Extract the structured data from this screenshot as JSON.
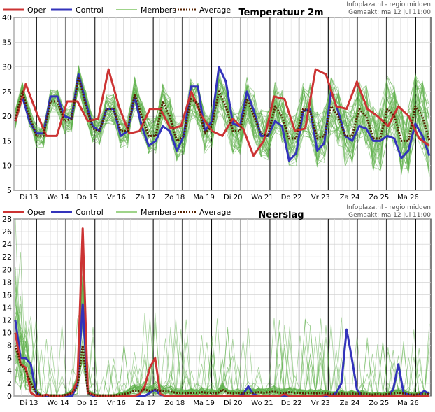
{
  "chart_data": [
    {
      "type": "line",
      "title": "Temperatuur 2m",
      "source": "Infoplaza.nl - regio midden",
      "made": "Gemaakt: ma 12 jul 11:00",
      "ylim": [
        5,
        40
      ],
      "yticks": [
        5,
        10,
        15,
        20,
        25,
        30,
        35,
        40
      ],
      "day_labels": [
        "Di 13",
        "Wo 14",
        "Do 15",
        "Vr 16",
        "Za 17",
        "Zo 18",
        "Ma 19",
        "Di 20",
        "Wo 21",
        "Do 22",
        "Vr 23",
        "Za 24",
        "Zo 25",
        "Ma 26"
      ],
      "legend": [
        {
          "key": "oper",
          "label": "Oper",
          "color": "#cc3333",
          "style": "solid"
        },
        {
          "key": "control",
          "label": "Control",
          "color": "#3333bb",
          "style": "solid"
        },
        {
          "key": "members",
          "label": "Members",
          "color": "#66bb44",
          "style": "thin"
        },
        {
          "key": "average",
          "label": "Average",
          "color": "#552200",
          "style": "dotted"
        }
      ],
      "series": [
        {
          "name": "Oper",
          "values": [
            19,
            26.5,
            21,
            16,
            16,
            23,
            23,
            19,
            19.5,
            29.5,
            22,
            16.5,
            17,
            21.5,
            21.5,
            17.5,
            18,
            25,
            20,
            17,
            16,
            19.5,
            17.5,
            12,
            15,
            24,
            23.5,
            17,
            17.5,
            29.5,
            28.5,
            22,
            21.5,
            27,
            21.5,
            20,
            18,
            22,
            20,
            15.5,
            14
          ]
        },
        {
          "name": "Control",
          "values": [
            19,
            24,
            19,
            16.5,
            16.5,
            24,
            24,
            20,
            19.5,
            28.5,
            23,
            18,
            17,
            21.5,
            21.5,
            16,
            17,
            24,
            18,
            14,
            15,
            18,
            17,
            13,
            16,
            26,
            26,
            17,
            19,
            30,
            27,
            18.5,
            18,
            25,
            21,
            16,
            16,
            19,
            18,
            11,
            12.5,
            21,
            21.5,
            13,
            14.5,
            25,
            21,
            16,
            15,
            18,
            17.5,
            15,
            15,
            16,
            15.5,
            11.5,
            13,
            18.5,
            16,
            12
          ]
        },
        {
          "name": "Average",
          "values": [
            19.5,
            25,
            20,
            16,
            16,
            23,
            23,
            19,
            19.5,
            28,
            22.5,
            17.5,
            17,
            21.5,
            21.5,
            17,
            17,
            24.5,
            20,
            16,
            16,
            23,
            20,
            15,
            16,
            23.5,
            22.5,
            16.5,
            18,
            25,
            22,
            17,
            17,
            23.5,
            20,
            16.5,
            16,
            22,
            20,
            15.5,
            15.5,
            21.5,
            21,
            15.5,
            16,
            22,
            20,
            16,
            16,
            21.5,
            20,
            15.5,
            15.5,
            21.5,
            20,
            15,
            15,
            22,
            20,
            15
          ]
        }
      ]
    },
    {
      "type": "line",
      "title": "Neerslag",
      "source": "Infoplaza.nl - regio midden",
      "made": "Gemaakt: ma 12 jul 11:00",
      "ylim": [
        0,
        28
      ],
      "yticks": [
        0,
        2,
        4,
        6,
        8,
        10,
        12,
        14,
        16,
        18,
        20,
        22,
        24,
        26,
        28
      ],
      "day_labels": [
        "Di 13",
        "Wo 14",
        "Do 15",
        "Vr 16",
        "Za 17",
        "Zo 18",
        "Ma 19",
        "Di 20",
        "Wo 21",
        "Do 22",
        "Vr 23",
        "Za 24",
        "Zo 25",
        "Ma 26"
      ],
      "legend": [
        {
          "key": "oper",
          "label": "Oper",
          "color": "#cc3333",
          "style": "solid"
        },
        {
          "key": "control",
          "label": "Control",
          "color": "#3333bb",
          "style": "solid"
        },
        {
          "key": "members",
          "label": "Members",
          "color": "#66bb44",
          "style": "thin"
        },
        {
          "key": "average",
          "label": "Average",
          "color": "#552200",
          "style": "dotted"
        }
      ],
      "series": [
        {
          "name": "Oper",
          "values": [
            10,
            5,
            4.5,
            0.5,
            0,
            0,
            0.2,
            0,
            0,
            0,
            0.2,
            0.5,
            2.5,
            26.5,
            0.5,
            0.2,
            0,
            0,
            0,
            0,
            0,
            0,
            0,
            0,
            0.3,
            1.5,
            4.5,
            6,
            0.3,
            0,
            0,
            0,
            0,
            0,
            0,
            0,
            0,
            0,
            0,
            0,
            0,
            0,
            0,
            0,
            0,
            0,
            0,
            0,
            0,
            0,
            0,
            0,
            0.3,
            0,
            0,
            0,
            0,
            0,
            0,
            0,
            0.2,
            0,
            0,
            0,
            0,
            0,
            0,
            0,
            0,
            0,
            0,
            0,
            0,
            0,
            0,
            0,
            0,
            0,
            0,
            0,
            0
          ]
        },
        {
          "name": "Control",
          "values": [
            12,
            6,
            6,
            5,
            0.5,
            0,
            0,
            0,
            0,
            0,
            0,
            0,
            2,
            14.5,
            0.5,
            0,
            0,
            0,
            0,
            0,
            0,
            0,
            0,
            0,
            0,
            0,
            0.5,
            1,
            0.2,
            0,
            0,
            0,
            0,
            0,
            0,
            0,
            0,
            0,
            0,
            0,
            0,
            0,
            0,
            0,
            0.3,
            1.5,
            0.3,
            0,
            0,
            0,
            0,
            0,
            0,
            0,
            0,
            0,
            0,
            0,
            0,
            0,
            0,
            0,
            0.5,
            2,
            10.5,
            6,
            1,
            0,
            0,
            0,
            0,
            0,
            0,
            1,
            5,
            0.5,
            0.2,
            0,
            0.2,
            0.8,
            0.3
          ]
        },
        {
          "name": "Average",
          "values": [
            8,
            5,
            4,
            2,
            0.5,
            0.1,
            0.1,
            0.1,
            0.1,
            0.1,
            0.2,
            0.5,
            1.5,
            8,
            0.5,
            0.2,
            0.1,
            0.1,
            0.1,
            0.1,
            0.2,
            0.3,
            0.5,
            0.8,
            0.8,
            1,
            0.8,
            1,
            0.8,
            0.7,
            0.7,
            0.5,
            0.5,
            0.4,
            0.5,
            0.5,
            0.6,
            0.5,
            0.5,
            0.4,
            1,
            0.5,
            0.4,
            0.5,
            0.4,
            0.5,
            0.5,
            0.6,
            0.5,
            0.6,
            0.7,
            0.5,
            0.5,
            0.6,
            0.5,
            0.5,
            0.4,
            0.5,
            0.4,
            0.5,
            0.4,
            0.3,
            0.3,
            0.4,
            0.3,
            0.4,
            0.3,
            0.4,
            0.3,
            0.2,
            0.3,
            0.2,
            0.3,
            0.4,
            0.5,
            0.4,
            0.3,
            0.2,
            0.3,
            0.3,
            0.3
          ]
        }
      ]
    }
  ]
}
